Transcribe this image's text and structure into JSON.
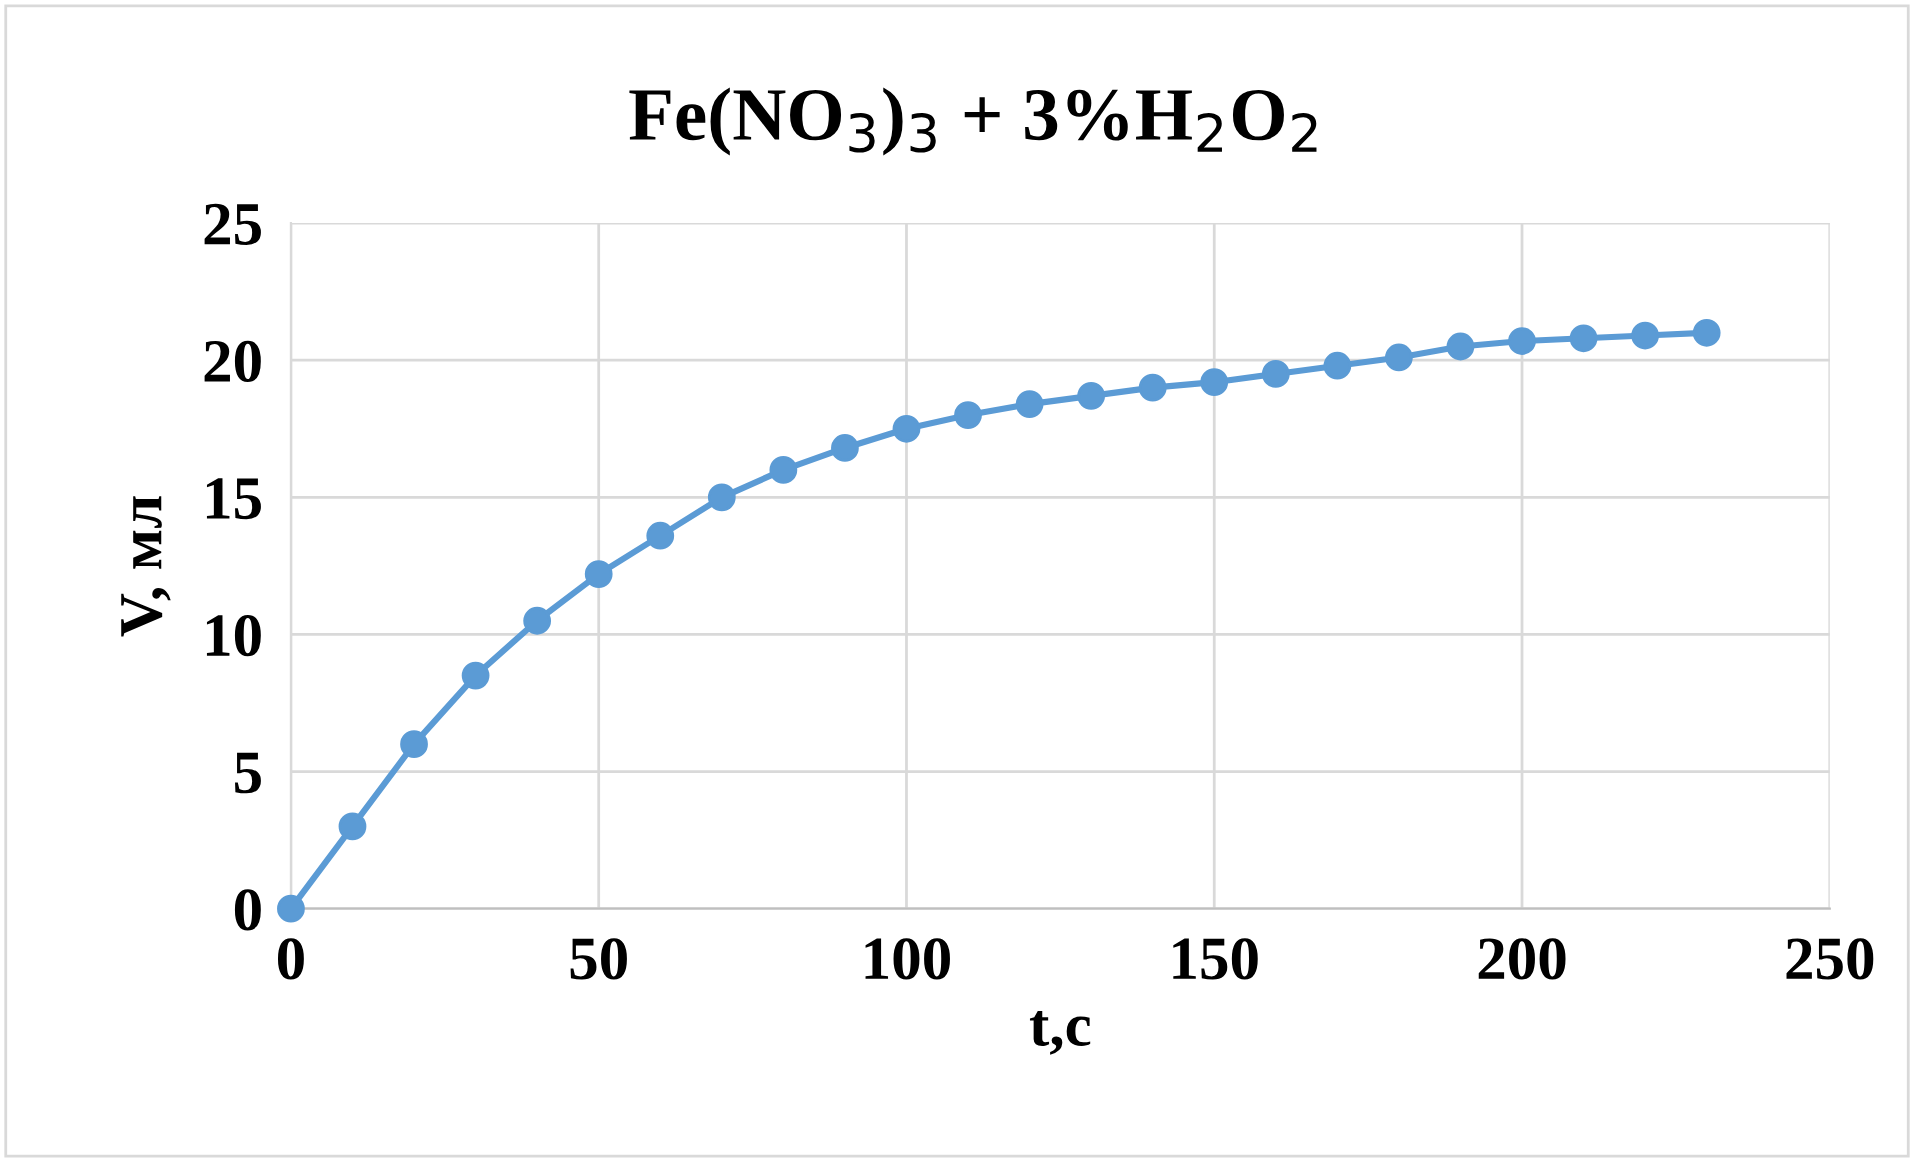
{
  "chart_data": {
    "type": "line",
    "title": "Fe(NO$_{3}$)$_{3}$ + 3%H$_{2}$O$_{2}$",
    "xlabel": "t,c",
    "ylabel": "V, мл",
    "x": [
      0,
      10,
      20,
      30,
      40,
      50,
      60,
      70,
      80,
      90,
      100,
      110,
      120,
      130,
      140,
      150,
      160,
      170,
      180,
      190,
      200,
      210,
      220,
      230
    ],
    "series": [
      {
        "color": "#5b9bd5",
        "values": [
          0,
          3.0,
          6.0,
          8.5,
          10.5,
          12.2,
          13.6,
          15.0,
          16.0,
          16.8,
          17.5,
          18.0,
          18.4,
          18.7,
          19.0,
          19.2,
          19.5,
          19.8,
          20.1,
          20.5,
          20.7,
          20.8,
          20.9,
          21.0
        ]
      }
    ],
    "xlim": [
      0,
      250
    ],
    "xticks": [
      0,
      50,
      100,
      150,
      200,
      250
    ],
    "ylim": [
      0,
      25
    ],
    "yticks": [
      0,
      5,
      10,
      15,
      20,
      25
    ],
    "grid": true,
    "marker": "circle",
    "line_style": "solid",
    "legend": false
  }
}
